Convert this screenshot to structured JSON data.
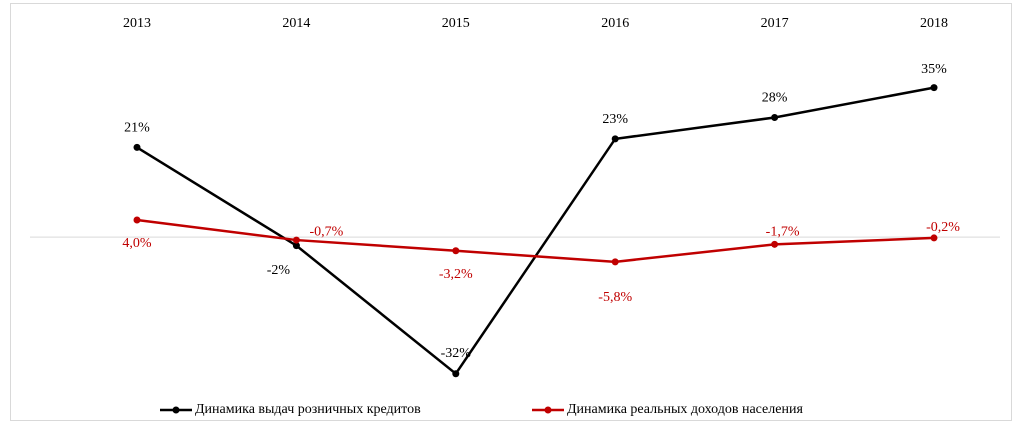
{
  "chart_data": {
    "type": "line",
    "categories": [
      "2013",
      "2014",
      "2015",
      "2016",
      "2017",
      "2018"
    ],
    "ylim": [
      -33,
      38
    ],
    "series": [
      {
        "name": "Динамика выдач розничных кредитов",
        "color": "#000000",
        "values": [
          21,
          -2,
          -32,
          23,
          28,
          35
        ],
        "value_labels": [
          "21%",
          "-2%",
          "-32%",
          "23%",
          "28%",
          "35%"
        ]
      },
      {
        "name": "Динамика реальных доходов населения",
        "color": "#c00000",
        "values": [
          4.0,
          -0.7,
          -3.2,
          -5.8,
          -1.7,
          -0.2
        ],
        "value_labels": [
          "4,0%",
          "-0,7%",
          "-3,2%",
          "-5,8%",
          "-1,7%",
          "-0,2%"
        ]
      }
    ]
  }
}
